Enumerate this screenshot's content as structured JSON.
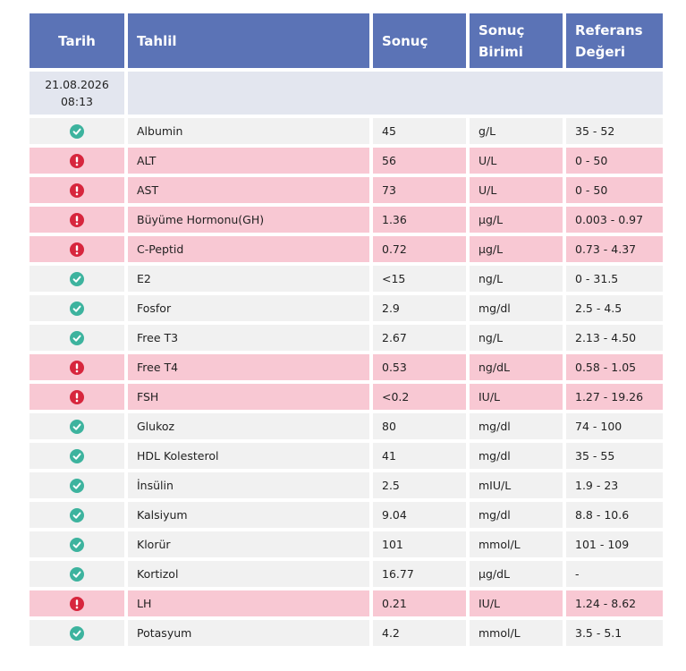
{
  "table": {
    "headers": [
      "Tarih",
      "Tahlil",
      "Sonuç",
      "Sonuç Birimi",
      "Referans Değeri"
    ],
    "date": "21.08.2026",
    "time": "08:13",
    "rows": [
      {
        "abnormal": false,
        "test": "Albumin",
        "result": "45",
        "unit": "g/L",
        "reference": "35 - 52"
      },
      {
        "abnormal": true,
        "test": "ALT",
        "result": "56",
        "unit": "U/L",
        "reference": "0 - 50"
      },
      {
        "abnormal": true,
        "test": "AST",
        "result": "73",
        "unit": "U/L",
        "reference": "0 - 50"
      },
      {
        "abnormal": true,
        "test": "Büyüme Hormonu(GH)",
        "result": "1.36",
        "unit": "µg/L",
        "reference": "0.003 - 0.97"
      },
      {
        "abnormal": true,
        "test": "C-Peptid",
        "result": "0.72",
        "unit": "µg/L",
        "reference": "0.73 - 4.37"
      },
      {
        "abnormal": false,
        "test": "E2",
        "result": "<15",
        "unit": "ng/L",
        "reference": "0 - 31.5"
      },
      {
        "abnormal": false,
        "test": "Fosfor",
        "result": "2.9",
        "unit": "mg/dl",
        "reference": "2.5 - 4.5"
      },
      {
        "abnormal": false,
        "test": "Free T3",
        "result": "2.67",
        "unit": "ng/L",
        "reference": "2.13 - 4.50"
      },
      {
        "abnormal": true,
        "test": "Free T4",
        "result": "0.53",
        "unit": "ng/dL",
        "reference": "0.58 - 1.05"
      },
      {
        "abnormal": true,
        "test": "FSH",
        "result": "<0.2",
        "unit": "IU/L",
        "reference": "1.27 - 19.26"
      },
      {
        "abnormal": false,
        "test": "Glukoz",
        "result": "80",
        "unit": "mg/dl",
        "reference": "74 - 100"
      },
      {
        "abnormal": false,
        "test": "HDL Kolesterol",
        "result": "41",
        "unit": "mg/dl",
        "reference": "35 - 55"
      },
      {
        "abnormal": false,
        "test": "İnsülin",
        "result": "2.5",
        "unit": "mIU/L",
        "reference": "1.9 - 23"
      },
      {
        "abnormal": false,
        "test": "Kalsiyum",
        "result": "9.04",
        "unit": "mg/dl",
        "reference": "8.8 - 10.6"
      },
      {
        "abnormal": false,
        "test": "Klorür",
        "result": "101",
        "unit": "mmol/L",
        "reference": "101 - 109"
      },
      {
        "abnormal": false,
        "test": "Kortizol",
        "result": "16.77",
        "unit": "µg/dL",
        "reference": "-"
      },
      {
        "abnormal": true,
        "test": "LH",
        "result": "0.21",
        "unit": "IU/L",
        "reference": "1.24 - 8.62"
      },
      {
        "abnormal": false,
        "test": "Potasyum",
        "result": "4.2",
        "unit": "mmol/L",
        "reference": "3.5 - 5.1"
      }
    ]
  }
}
